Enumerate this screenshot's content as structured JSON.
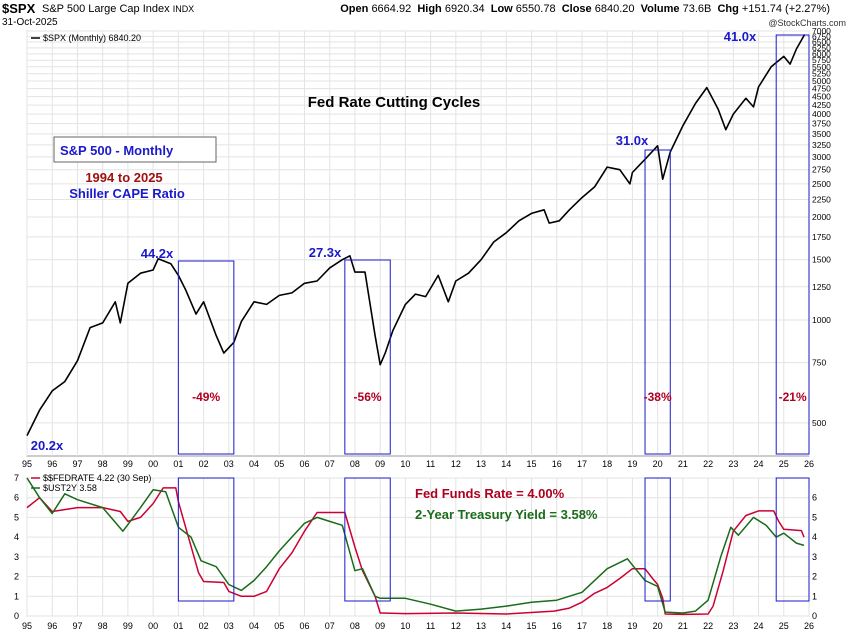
{
  "header": {
    "ticker": "$SPX",
    "name": "S&P 500 Large Cap Index",
    "exchange": "INDX",
    "date": "31-Oct-2025",
    "open_label": "Open",
    "open": "6664.92",
    "high_label": "High",
    "high": "6920.34",
    "low_label": "Low",
    "low": "6550.78",
    "close_label": "Close",
    "close": "6840.20",
    "volume_label": "Volume",
    "volume": "73.6B",
    "chg_label": "Chg",
    "chg": "+151.74 (+2.27%)",
    "watermark": "@StockCharts.com"
  },
  "chart_data": [
    {
      "type": "line",
      "title": "Fed Rate Cutting Cycles",
      "legend": "$SPX (Monthly) 6840.20",
      "info_box": "S&P 500 - Monthly",
      "subtitle1": "1994 to 2025",
      "subtitle2": "Shiller CAPE Ratio",
      "yscale": "log",
      "ylim": [
        400,
        7000
      ],
      "xlim": [
        1995,
        2026
      ],
      "x_ticks": [
        "95",
        "96",
        "97",
        "98",
        "99",
        "00",
        "01",
        "02",
        "03",
        "04",
        "05",
        "06",
        "07",
        "08",
        "09",
        "10",
        "11",
        "12",
        "13",
        "14",
        "15",
        "16",
        "17",
        "18",
        "19",
        "20",
        "21",
        "22",
        "23",
        "24",
        "25",
        "26"
      ],
      "y_ticks": [
        500,
        750,
        1000,
        1250,
        1500,
        1750,
        2000,
        2250,
        2500,
        2750,
        3000,
        3250,
        3500,
        3750,
        4000,
        4250,
        4500,
        4750,
        5000,
        5250,
        5500,
        5750,
        6000,
        6250,
        6500,
        6750,
        7000
      ],
      "series": [
        {
          "name": "$SPX (Monthly)",
          "color": "#000000",
          "x": [
            1995.0,
            1995.5,
            1996.0,
            1996.5,
            1997.0,
            1997.5,
            1998.0,
            1998.5,
            1998.7,
            1999.0,
            1999.5,
            2000.0,
            2000.2,
            2000.7,
            2001.0,
            2001.3,
            2001.7,
            2002.0,
            2002.5,
            2002.8,
            2003.2,
            2003.5,
            2004.0,
            2004.5,
            2005.0,
            2005.5,
            2006.0,
            2006.5,
            2007.0,
            2007.5,
            2007.8,
            2008.0,
            2008.4,
            2008.8,
            2009.0,
            2009.2,
            2009.5,
            2010.0,
            2010.4,
            2010.8,
            2011.3,
            2011.7,
            2012.0,
            2012.5,
            2013.0,
            2013.5,
            2014.0,
            2014.5,
            2015.0,
            2015.5,
            2015.7,
            2016.1,
            2016.5,
            2017.0,
            2017.5,
            2018.0,
            2018.5,
            2018.9,
            2019.0,
            2019.5,
            2020.0,
            2020.2,
            2020.5,
            2021.0,
            2021.5,
            2021.95,
            2022.4,
            2022.7,
            2023.0,
            2023.5,
            2023.8,
            2024.0,
            2024.5,
            2025.0,
            2025.25,
            2025.5,
            2025.83
          ],
          "values": [
            459,
            545,
            620,
            660,
            760,
            950,
            980,
            1130,
            980,
            1280,
            1370,
            1400,
            1510,
            1460,
            1350,
            1220,
            1040,
            1130,
            900,
            800,
            860,
            990,
            1130,
            1110,
            1180,
            1200,
            1280,
            1300,
            1420,
            1500,
            1540,
            1380,
            1380,
            900,
            740,
            800,
            930,
            1110,
            1190,
            1170,
            1350,
            1130,
            1300,
            1370,
            1500,
            1690,
            1800,
            1950,
            2050,
            2100,
            1920,
            1950,
            2100,
            2280,
            2450,
            2800,
            2750,
            2500,
            2700,
            2950,
            3230,
            2580,
            3100,
            3700,
            4300,
            4780,
            4130,
            3600,
            4000,
            4450,
            4200,
            4800,
            5500,
            5900,
            5600,
            6200,
            6840
          ]
        }
      ],
      "cape_annotations": [
        {
          "label": "20.2x",
          "x": 1995.0
        },
        {
          "label": "44.2x",
          "x": 2000.2
        },
        {
          "label": "27.3x",
          "x": 2007.8
        },
        {
          "label": "31.0x",
          "x": 2020.0
        },
        {
          "label": "41.0x",
          "x": 2025.0
        }
      ],
      "cycles": [
        {
          "start": 2001.0,
          "end": 2003.2,
          "decline": "-49%"
        },
        {
          "start": 2007.6,
          "end": 2009.4,
          "decline": "-56%"
        },
        {
          "start": 2019.5,
          "end": 2020.5,
          "decline": "-38%"
        },
        {
          "start": 2024.7,
          "end": 2026.0,
          "decline": "-21%"
        }
      ]
    },
    {
      "type": "line",
      "legend1": "$$FEDRATE 4.22 (30 Sep)",
      "legend2": "$UST2Y 3.58",
      "label_fed": "Fed Funds Rate = 4.00%",
      "label_ust": "2-Year Treasury Yield = 3.58%",
      "ylim": [
        0,
        7
      ],
      "left_ticks": [
        0,
        1,
        2,
        3,
        4,
        5,
        6,
        7
      ],
      "right_ticks": [
        0,
        1,
        2,
        3,
        4,
        5,
        6
      ],
      "x_ticks": [
        "95",
        "96",
        "97",
        "98",
        "99",
        "00",
        "01",
        "02",
        "03",
        "04",
        "05",
        "06",
        "07",
        "08",
        "09",
        "10",
        "11",
        "12",
        "13",
        "14",
        "15",
        "16",
        "17",
        "18",
        "19",
        "20",
        "21",
        "22",
        "23",
        "24",
        "25",
        "26"
      ],
      "series": [
        {
          "name": "$$FEDRATE",
          "color": "#cc0033",
          "x": [
            1995.0,
            1995.5,
            1996.0,
            1997.0,
            1998.0,
            1998.7,
            1999.0,
            1999.5,
            2000.0,
            2000.4,
            2000.9,
            2001.0,
            2001.4,
            2001.8,
            2002.0,
            2002.8,
            2003.0,
            2003.5,
            2004.0,
            2004.5,
            2005.0,
            2005.5,
            2006.0,
            2006.5,
            2007.0,
            2007.6,
            2008.0,
            2008.3,
            2008.8,
            2009.0,
            2010.0,
            2012.0,
            2014.0,
            2015.9,
            2016.5,
            2017.0,
            2017.5,
            2018.0,
            2018.5,
            2019.0,
            2019.5,
            2019.8,
            2020.0,
            2020.2,
            2020.3,
            2021.0,
            2022.0,
            2022.2,
            2022.6,
            2023.0,
            2023.5,
            2024.0,
            2024.6,
            2024.8,
            2025.0,
            2025.7,
            2025.8
          ],
          "values": [
            5.5,
            6.0,
            5.3,
            5.5,
            5.5,
            5.3,
            4.8,
            5.0,
            5.7,
            6.5,
            6.5,
            5.8,
            4.0,
            2.2,
            1.75,
            1.7,
            1.25,
            1.0,
            1.0,
            1.25,
            2.4,
            3.2,
            4.3,
            5.25,
            5.25,
            5.25,
            3.5,
            2.3,
            1.0,
            0.15,
            0.12,
            0.15,
            0.1,
            0.25,
            0.4,
            0.7,
            1.15,
            1.45,
            1.9,
            2.4,
            2.4,
            1.9,
            1.6,
            0.9,
            0.1,
            0.08,
            0.1,
            0.5,
            2.3,
            4.3,
            5.1,
            5.33,
            5.33,
            4.8,
            4.4,
            4.33,
            4.0
          ]
        },
        {
          "name": "$UST2Y",
          "color": "#1a6b1a",
          "x": [
            1995.0,
            1995.5,
            1996.0,
            1996.5,
            1997.0,
            1998.0,
            1998.8,
            1999.5,
            2000.0,
            2000.5,
            2001.0,
            2001.5,
            2001.9,
            2002.5,
            2003.0,
            2003.5,
            2004.0,
            2004.5,
            2005.0,
            2006.0,
            2006.5,
            2007.0,
            2007.5,
            2008.0,
            2008.3,
            2008.8,
            2009.0,
            2010.0,
            2011.0,
            2012.0,
            2013.0,
            2014.0,
            2015.0,
            2016.0,
            2017.0,
            2018.0,
            2018.8,
            2019.5,
            2020.0,
            2020.3,
            2021.0,
            2021.5,
            2022.0,
            2022.5,
            2022.9,
            2023.2,
            2023.8,
            2024.3,
            2024.7,
            2025.0,
            2025.5,
            2025.8
          ],
          "values": [
            7.0,
            6.0,
            5.2,
            6.2,
            5.9,
            5.5,
            4.3,
            5.5,
            6.4,
            6.3,
            4.5,
            4.0,
            2.8,
            2.5,
            1.6,
            1.3,
            1.8,
            2.5,
            3.3,
            4.7,
            5.0,
            4.8,
            4.6,
            2.3,
            2.4,
            1.0,
            0.9,
            0.9,
            0.6,
            0.25,
            0.35,
            0.5,
            0.7,
            0.8,
            1.2,
            2.4,
            2.9,
            1.8,
            1.5,
            0.2,
            0.15,
            0.25,
            0.8,
            3.0,
            4.5,
            4.1,
            5.0,
            4.6,
            4.0,
            4.2,
            3.7,
            3.58
          ]
        }
      ]
    }
  ]
}
